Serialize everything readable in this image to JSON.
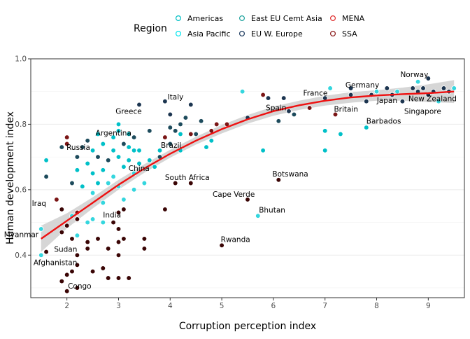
{
  "chart_data": {
    "type": "scatter",
    "title": "",
    "xlabel": "Corruption perception index",
    "ylabel": "Human development index",
    "xlim": [
      1.3,
      9.7
    ],
    "ylim": [
      0.27,
      1.0
    ],
    "xticks": [
      "2",
      "3",
      "4",
      "5",
      "6",
      "7",
      "8",
      "9"
    ],
    "xtick_values": [
      2,
      3,
      4,
      5,
      6,
      7,
      8,
      9
    ],
    "yticks": [
      "0.4",
      "0.6",
      "0.8",
      "1.0"
    ],
    "ytick_values": [
      0.4,
      0.6,
      0.8,
      1.0
    ],
    "grid": true,
    "legend": {
      "title": "Region",
      "placement": "top",
      "items": [
        {
          "label": "Americas",
          "color": "#00bfc4"
        },
        {
          "label": "Asia Pacific",
          "color": "#00e5ee"
        },
        {
          "label": "East EU Cemt Asia",
          "color": "#20a39e"
        },
        {
          "label": "EU W. Europe",
          "color": "#1c3a5e"
        },
        {
          "label": "MENA",
          "color": "#e03030"
        },
        {
          "label": "SSA",
          "color": "#8b1a1a"
        }
      ]
    },
    "region_fill": {
      "Americas": "#00c0c8",
      "Asia Pacific": "#34d6de",
      "East EU Cemt Asia": "#1d4b5c",
      "EU W. Europe": "#1c3550",
      "MENA": "#7a1515",
      "SSA": "#3a0505"
    },
    "trend": {
      "x": [
        1.5,
        2.0,
        2.5,
        3.0,
        3.5,
        4.0,
        4.5,
        5.0,
        5.5,
        6.0,
        6.5,
        7.0,
        7.5,
        8.0,
        8.5,
        9.0,
        9.5
      ],
      "y": [
        0.45,
        0.505,
        0.56,
        0.615,
        0.665,
        0.71,
        0.75,
        0.785,
        0.815,
        0.84,
        0.858,
        0.872,
        0.882,
        0.888,
        0.892,
        0.895,
        0.9
      ],
      "band_low": [
        0.41,
        0.482,
        0.543,
        0.6,
        0.652,
        0.698,
        0.738,
        0.772,
        0.802,
        0.826,
        0.844,
        0.857,
        0.866,
        0.872,
        0.872,
        0.868,
        0.865
      ],
      "band_high": [
        0.49,
        0.528,
        0.577,
        0.63,
        0.678,
        0.722,
        0.762,
        0.798,
        0.828,
        0.854,
        0.872,
        0.887,
        0.898,
        0.904,
        0.912,
        0.922,
        0.935
      ],
      "color": "#ee1111"
    },
    "points": [
      {
        "x": 1.5,
        "y": 0.48,
        "r": "Asia Pacific"
      },
      {
        "x": 1.5,
        "y": 0.4,
        "r": "Asia Pacific"
      },
      {
        "x": 1.6,
        "y": 0.69,
        "r": "Americas"
      },
      {
        "x": 1.6,
        "y": 0.64,
        "r": "East EU Cemt Asia"
      },
      {
        "x": 1.6,
        "y": 0.41,
        "r": "SSA"
      },
      {
        "x": 1.8,
        "y": 0.57,
        "r": "MENA"
      },
      {
        "x": 1.9,
        "y": 0.54,
        "r": "SSA"
      },
      {
        "x": 1.9,
        "y": 0.47,
        "r": "SSA"
      },
      {
        "x": 1.9,
        "y": 0.32,
        "r": "SSA"
      },
      {
        "x": 1.9,
        "y": 0.73,
        "r": "East EU Cemt Asia"
      },
      {
        "x": 2.0,
        "y": 0.76,
        "r": "MENA"
      },
      {
        "x": 2.0,
        "y": 0.74,
        "r": "MENA"
      },
      {
        "x": 2.0,
        "y": 0.49,
        "r": "SSA"
      },
      {
        "x": 2.0,
        "y": 0.34,
        "r": "SSA"
      },
      {
        "x": 2.0,
        "y": 0.29,
        "r": "SSA"
      },
      {
        "x": 2.1,
        "y": 0.62,
        "r": "East EU Cemt Asia"
      },
      {
        "x": 2.1,
        "y": 0.52,
        "r": "Asia Pacific"
      },
      {
        "x": 2.1,
        "y": 0.45,
        "r": "SSA"
      },
      {
        "x": 2.1,
        "y": 0.35,
        "r": "SSA"
      },
      {
        "x": 2.2,
        "y": 0.53,
        "r": "MENA"
      },
      {
        "x": 2.2,
        "y": 0.51,
        "r": "SSA"
      },
      {
        "x": 2.2,
        "y": 0.46,
        "r": "Asia Pacific"
      },
      {
        "x": 2.2,
        "y": 0.4,
        "r": "SSA"
      },
      {
        "x": 2.2,
        "y": 0.37,
        "r": "SSA"
      },
      {
        "x": 2.2,
        "y": 0.3,
        "r": "SSA"
      },
      {
        "x": 2.2,
        "y": 0.66,
        "r": "Americas"
      },
      {
        "x": 2.2,
        "y": 0.7,
        "r": "East EU Cemt Asia"
      },
      {
        "x": 2.3,
        "y": 0.73,
        "r": "East EU Cemt Asia"
      },
      {
        "x": 2.3,
        "y": 0.61,
        "r": "Americas"
      },
      {
        "x": 2.4,
        "y": 0.75,
        "r": "East EU Cemt Asia"
      },
      {
        "x": 2.4,
        "y": 0.68,
        "r": "Americas"
      },
      {
        "x": 2.4,
        "y": 0.5,
        "r": "Asia Pacific"
      },
      {
        "x": 2.4,
        "y": 0.44,
        "r": "SSA"
      },
      {
        "x": 2.4,
        "y": 0.42,
        "r": "SSA"
      },
      {
        "x": 2.5,
        "y": 0.72,
        "r": "Americas"
      },
      {
        "x": 2.5,
        "y": 0.65,
        "r": "Americas"
      },
      {
        "x": 2.5,
        "y": 0.59,
        "r": "Asia Pacific"
      },
      {
        "x": 2.5,
        "y": 0.51,
        "r": "Asia Pacific"
      },
      {
        "x": 2.5,
        "y": 0.35,
        "r": "SSA"
      },
      {
        "x": 2.6,
        "y": 0.77,
        "r": "Americas"
      },
      {
        "x": 2.6,
        "y": 0.7,
        "r": "East EU Cemt Asia"
      },
      {
        "x": 2.6,
        "y": 0.62,
        "r": "Americas"
      },
      {
        "x": 2.6,
        "y": 0.45,
        "r": "SSA"
      },
      {
        "x": 2.7,
        "y": 0.74,
        "r": "Americas"
      },
      {
        "x": 2.7,
        "y": 0.66,
        "r": "Americas"
      },
      {
        "x": 2.7,
        "y": 0.56,
        "r": "Asia Pacific"
      },
      {
        "x": 2.7,
        "y": 0.5,
        "r": "Asia Pacific"
      },
      {
        "x": 2.7,
        "y": 0.36,
        "r": "SSA"
      },
      {
        "x": 2.8,
        "y": 0.69,
        "r": "East EU Cemt Asia"
      },
      {
        "x": 2.8,
        "y": 0.62,
        "r": "Asia Pacific"
      },
      {
        "x": 2.8,
        "y": 0.42,
        "r": "SSA"
      },
      {
        "x": 2.8,
        "y": 0.33,
        "r": "SSA"
      },
      {
        "x": 2.9,
        "y": 0.76,
        "r": "Americas"
      },
      {
        "x": 2.9,
        "y": 0.72,
        "r": "Americas"
      },
      {
        "x": 2.9,
        "y": 0.64,
        "r": "Asia Pacific"
      },
      {
        "x": 2.9,
        "y": 0.5,
        "r": "SSA"
      },
      {
        "x": 3.0,
        "y": 0.8,
        "r": "Americas"
      },
      {
        "x": 3.0,
        "y": 0.78,
        "r": "Americas"
      },
      {
        "x": 3.0,
        "y": 0.7,
        "r": "Americas"
      },
      {
        "x": 3.0,
        "y": 0.61,
        "r": "Asia Pacific"
      },
      {
        "x": 3.0,
        "y": 0.53,
        "r": "SSA"
      },
      {
        "x": 3.0,
        "y": 0.48,
        "r": "SSA"
      },
      {
        "x": 3.0,
        "y": 0.44,
        "r": "SSA"
      },
      {
        "x": 3.0,
        "y": 0.4,
        "r": "SSA"
      },
      {
        "x": 3.0,
        "y": 0.33,
        "r": "SSA"
      },
      {
        "x": 3.1,
        "y": 0.74,
        "r": "East EU Cemt Asia"
      },
      {
        "x": 3.1,
        "y": 0.67,
        "r": "Americas"
      },
      {
        "x": 3.1,
        "y": 0.57,
        "r": "Asia Pacific"
      },
      {
        "x": 3.1,
        "y": 0.54,
        "r": "SSA"
      },
      {
        "x": 3.1,
        "y": 0.45,
        "r": "SSA"
      },
      {
        "x": 3.2,
        "y": 0.77,
        "r": "Americas"
      },
      {
        "x": 3.2,
        "y": 0.73,
        "r": "Americas"
      },
      {
        "x": 3.2,
        "y": 0.69,
        "r": "Americas"
      },
      {
        "x": 3.2,
        "y": 0.33,
        "r": "SSA"
      },
      {
        "x": 3.3,
        "y": 0.76,
        "r": "East EU Cemt Asia"
      },
      {
        "x": 3.3,
        "y": 0.72,
        "r": "Americas"
      },
      {
        "x": 3.3,
        "y": 0.65,
        "r": "Asia Pacific"
      },
      {
        "x": 3.3,
        "y": 0.6,
        "r": "Asia Pacific"
      },
      {
        "x": 3.4,
        "y": 0.86,
        "r": "EU W. Europe"
      },
      {
        "x": 3.4,
        "y": 0.72,
        "r": "Americas"
      },
      {
        "x": 3.4,
        "y": 0.68,
        "r": "Americas"
      },
      {
        "x": 3.5,
        "y": 0.62,
        "r": "Asia Pacific"
      },
      {
        "x": 3.5,
        "y": 0.45,
        "r": "SSA"
      },
      {
        "x": 3.5,
        "y": 0.42,
        "r": "SSA"
      },
      {
        "x": 3.6,
        "y": 0.78,
        "r": "East EU Cemt Asia"
      },
      {
        "x": 3.6,
        "y": 0.69,
        "r": "Americas"
      },
      {
        "x": 3.7,
        "y": 0.67,
        "r": "Americas"
      },
      {
        "x": 3.8,
        "y": 0.72,
        "r": "Americas"
      },
      {
        "x": 3.8,
        "y": 0.7,
        "r": "East EU Cemt Asia"
      },
      {
        "x": 3.9,
        "y": 0.87,
        "r": "EU W. Europe"
      },
      {
        "x": 3.9,
        "y": 0.76,
        "r": "MENA"
      },
      {
        "x": 3.9,
        "y": 0.54,
        "r": "SSA"
      },
      {
        "x": 4.0,
        "y": 0.83,
        "r": "EU W. Europe"
      },
      {
        "x": 4.0,
        "y": 0.79,
        "r": "East EU Cemt Asia"
      },
      {
        "x": 4.0,
        "y": 0.74,
        "r": "East EU Cemt Asia"
      },
      {
        "x": 4.1,
        "y": 0.78,
        "r": "East EU Cemt Asia"
      },
      {
        "x": 4.1,
        "y": 0.62,
        "r": "SSA"
      },
      {
        "x": 4.2,
        "y": 0.8,
        "r": "East EU Cemt Asia"
      },
      {
        "x": 4.2,
        "y": 0.77,
        "r": "Americas"
      },
      {
        "x": 4.2,
        "y": 0.72,
        "r": "Americas"
      },
      {
        "x": 4.3,
        "y": 0.82,
        "r": "East EU Cemt Asia"
      },
      {
        "x": 4.4,
        "y": 0.86,
        "r": "EU W. Europe"
      },
      {
        "x": 4.4,
        "y": 0.77,
        "r": "MENA"
      },
      {
        "x": 4.4,
        "y": 0.62,
        "r": "SSA"
      },
      {
        "x": 4.5,
        "y": 0.77,
        "r": "East EU Cemt Asia"
      },
      {
        "x": 4.6,
        "y": 0.81,
        "r": "East EU Cemt Asia"
      },
      {
        "x": 4.7,
        "y": 0.73,
        "r": "Americas"
      },
      {
        "x": 4.8,
        "y": 0.78,
        "r": "MENA"
      },
      {
        "x": 4.8,
        "y": 0.75,
        "r": "Americas"
      },
      {
        "x": 4.9,
        "y": 0.8,
        "r": "MENA"
      },
      {
        "x": 5.0,
        "y": 0.43,
        "r": "SSA"
      },
      {
        "x": 5.1,
        "y": 0.8,
        "r": "MENA"
      },
      {
        "x": 5.4,
        "y": 0.9,
        "r": "Asia Pacific"
      },
      {
        "x": 5.5,
        "y": 0.82,
        "r": "EU W. Europe"
      },
      {
        "x": 5.5,
        "y": 0.57,
        "r": "SSA"
      },
      {
        "x": 5.7,
        "y": 0.52,
        "r": "Asia Pacific"
      },
      {
        "x": 5.8,
        "y": 0.89,
        "r": "MENA"
      },
      {
        "x": 5.8,
        "y": 0.72,
        "r": "Americas"
      },
      {
        "x": 5.9,
        "y": 0.88,
        "r": "EU W. Europe"
      },
      {
        "x": 6.1,
        "y": 0.63,
        "r": "SSA"
      },
      {
        "x": 6.1,
        "y": 0.81,
        "r": "East EU Cemt Asia"
      },
      {
        "x": 6.2,
        "y": 0.88,
        "r": "EU W. Europe"
      },
      {
        "x": 6.3,
        "y": 0.84,
        "r": "EU W. Europe"
      },
      {
        "x": 6.4,
        "y": 0.83,
        "r": "East EU Cemt Asia"
      },
      {
        "x": 6.7,
        "y": 0.85,
        "r": "MENA"
      },
      {
        "x": 7.0,
        "y": 0.78,
        "r": "Americas"
      },
      {
        "x": 7.0,
        "y": 0.72,
        "r": "Americas"
      },
      {
        "x": 7.0,
        "y": 0.88,
        "r": "EU W. Europe"
      },
      {
        "x": 7.1,
        "y": 0.91,
        "r": "Asia Pacific"
      },
      {
        "x": 7.2,
        "y": 0.83,
        "r": "MENA"
      },
      {
        "x": 7.3,
        "y": 0.77,
        "r": "Americas"
      },
      {
        "x": 7.5,
        "y": 0.91,
        "r": "EU W. Europe"
      },
      {
        "x": 7.5,
        "y": 0.89,
        "r": "EU W. Europe"
      },
      {
        "x": 7.8,
        "y": 0.79,
        "r": "Americas"
      },
      {
        "x": 7.8,
        "y": 0.87,
        "r": "EU W. Europe"
      },
      {
        "x": 7.9,
        "y": 0.89,
        "r": "EU W. Europe"
      },
      {
        "x": 8.0,
        "y": 0.9,
        "r": "EU W. Europe"
      },
      {
        "x": 8.0,
        "y": 0.9,
        "r": "Asia Pacific"
      },
      {
        "x": 8.2,
        "y": 0.91,
        "r": "EU W. Europe"
      },
      {
        "x": 8.3,
        "y": 0.89,
        "r": "EU W. Europe"
      },
      {
        "x": 8.4,
        "y": 0.9,
        "r": "Asia Pacific"
      },
      {
        "x": 8.5,
        "y": 0.87,
        "r": "EU W. Europe"
      },
      {
        "x": 8.7,
        "y": 0.91,
        "r": "EU W. Europe"
      },
      {
        "x": 8.8,
        "y": 0.93,
        "r": "Asia Pacific"
      },
      {
        "x": 8.8,
        "y": 0.9,
        "r": "EU W. Europe"
      },
      {
        "x": 8.9,
        "y": 0.91,
        "r": "EU W. Europe"
      },
      {
        "x": 9.0,
        "y": 0.94,
        "r": "EU W. Europe"
      },
      {
        "x": 9.0,
        "y": 0.89,
        "r": "EU W. Europe"
      },
      {
        "x": 9.1,
        "y": 0.9,
        "r": "EU W. Europe"
      },
      {
        "x": 9.2,
        "y": 0.87,
        "r": "Asia Pacific"
      },
      {
        "x": 9.3,
        "y": 0.91,
        "r": "EU W. Europe"
      },
      {
        "x": 9.4,
        "y": 0.9,
        "r": "EU W. Europe"
      },
      {
        "x": 9.5,
        "y": 0.91,
        "r": "Asia Pacific"
      }
    ],
    "annotations": [
      {
        "text": "Norway",
        "x": 9.0,
        "y": 0.944,
        "anchor": "end"
      },
      {
        "text": "Germany",
        "x": 8.05,
        "y": 0.912,
        "anchor": "end"
      },
      {
        "text": "France",
        "x": 7.05,
        "y": 0.888,
        "anchor": "end"
      },
      {
        "text": "New Zealand",
        "x": 9.55,
        "y": 0.87,
        "anchor": "end"
      },
      {
        "text": "Japan",
        "x": 8.4,
        "y": 0.865,
        "anchor": "end"
      },
      {
        "text": "Singapore",
        "x": 9.25,
        "y": 0.832,
        "anchor": "end"
      },
      {
        "text": "Britain",
        "x": 7.64,
        "y": 0.838,
        "anchor": "end"
      },
      {
        "text": "Spain",
        "x": 6.25,
        "y": 0.843,
        "anchor": "end"
      },
      {
        "text": "Barbados",
        "x": 7.8,
        "y": 0.802,
        "anchor": "start"
      },
      {
        "text": "Italy",
        "x": 3.95,
        "y": 0.876,
        "anchor": "start"
      },
      {
        "text": "Greece",
        "x": 3.45,
        "y": 0.832,
        "anchor": "end"
      },
      {
        "text": "Argentina",
        "x": 3.25,
        "y": 0.766,
        "anchor": "end"
      },
      {
        "text": "Russia",
        "x": 2.45,
        "y": 0.722,
        "anchor": "end"
      },
      {
        "text": "Brazil",
        "x": 3.82,
        "y": 0.728,
        "anchor": "start"
      },
      {
        "text": "China",
        "x": 3.6,
        "y": 0.658,
        "anchor": "end"
      },
      {
        "text": "South Africa",
        "x": 3.9,
        "y": 0.63,
        "anchor": "start"
      },
      {
        "text": "Botswana",
        "x": 5.98,
        "y": 0.64,
        "anchor": "start"
      },
      {
        "text": "Cape Verde",
        "x": 5.64,
        "y": 0.578,
        "anchor": "end"
      },
      {
        "text": "Bhutan",
        "x": 5.72,
        "y": 0.53,
        "anchor": "start"
      },
      {
        "text": "India",
        "x": 2.7,
        "y": 0.515,
        "anchor": "start"
      },
      {
        "text": "Iraq",
        "x": 1.6,
        "y": 0.55,
        "anchor": "end"
      },
      {
        "text": "Myanmar",
        "x": 1.45,
        "y": 0.455,
        "anchor": "end"
      },
      {
        "text": "Rwanda",
        "x": 4.98,
        "y": 0.44,
        "anchor": "start"
      },
      {
        "text": "Sudan",
        "x": 2.2,
        "y": 0.41,
        "anchor": "end"
      },
      {
        "text": "Afghanistan",
        "x": 2.2,
        "y": 0.37,
        "anchor": "end"
      },
      {
        "text": "Congo",
        "x": 2.02,
        "y": 0.298,
        "anchor": "start"
      }
    ]
  }
}
